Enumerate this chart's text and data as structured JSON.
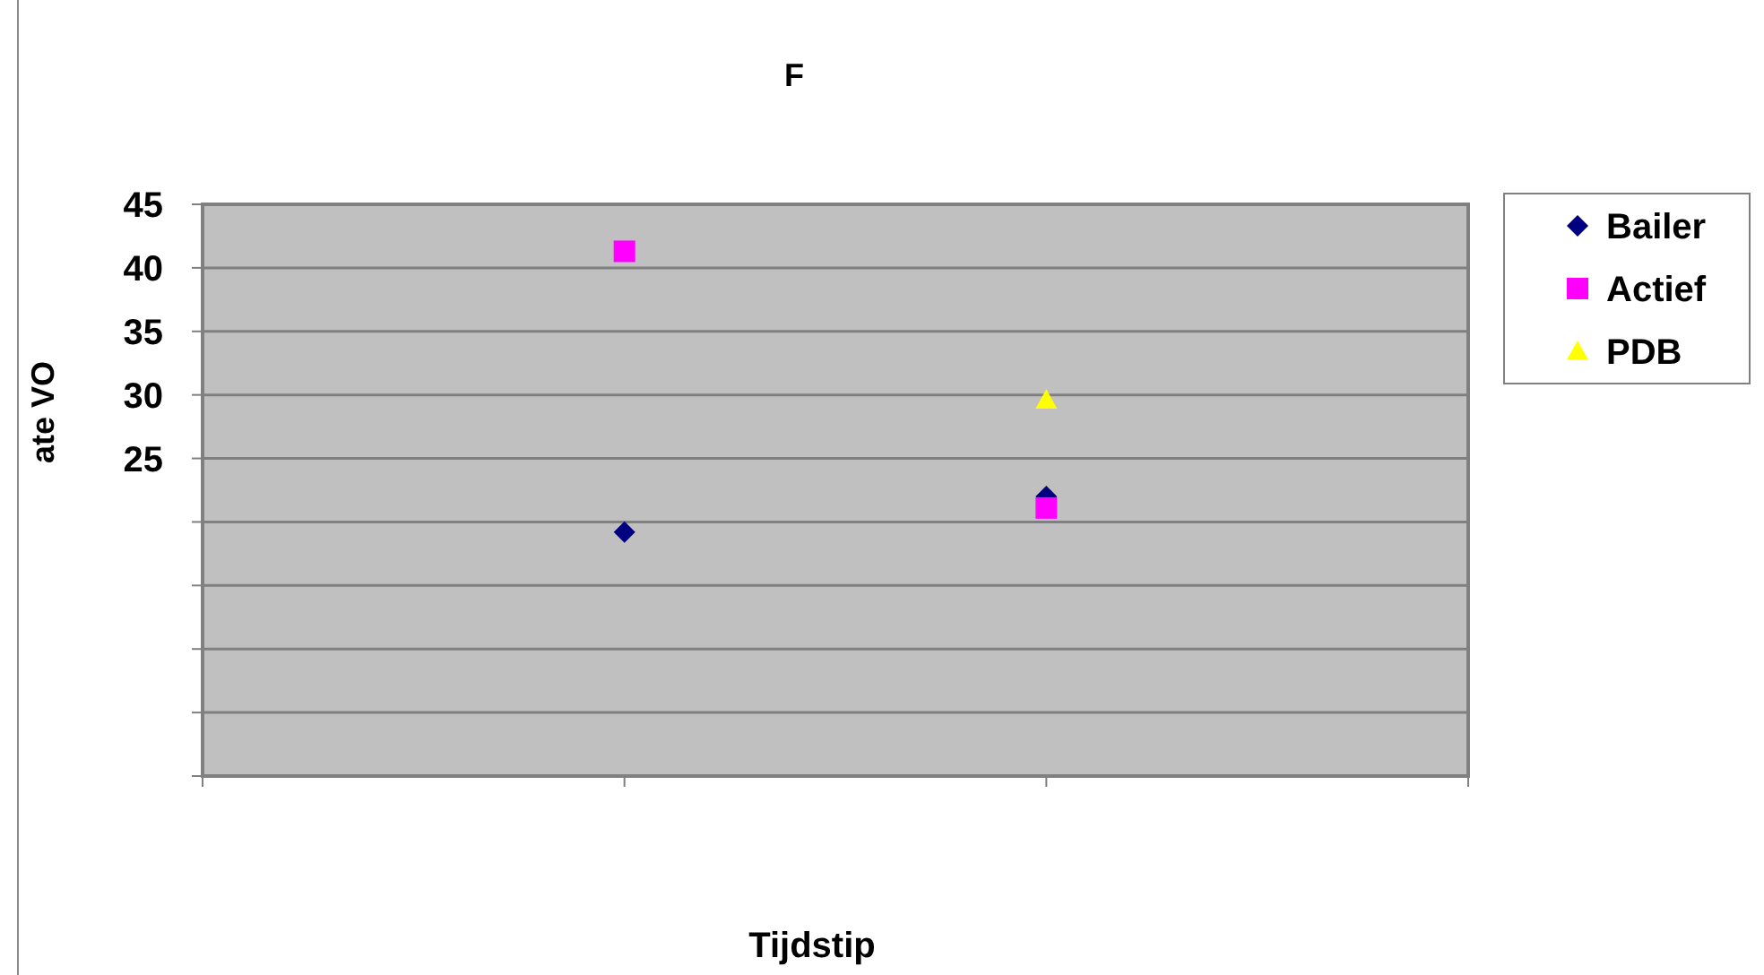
{
  "chart_data": {
    "type": "scatter",
    "title": "F",
    "xlabel": "Tijdstip",
    "ylabel": "ate VO",
    "categories": [
      null,
      null
    ],
    "ylim": [
      0,
      45
    ],
    "yticks": [
      {
        "value": 0,
        "label": null
      },
      {
        "value": 5,
        "label": null
      },
      {
        "value": 10,
        "label": null
      },
      {
        "value": 15,
        "label": null
      },
      {
        "value": 20,
        "label": null
      },
      25,
      30,
      35,
      40,
      45
    ],
    "grid": "y",
    "legend": "top right",
    "series": [
      {
        "name": "Bailer",
        "color": "#000080",
        "marker": "diamond",
        "values": [
          19.2,
          22.0
        ]
      },
      {
        "name": "Actief",
        "color": "#ff00ff",
        "marker": "square",
        "values": [
          41.3,
          21.1
        ]
      },
      {
        "name": "PDB",
        "color": "#ffff00",
        "marker": "triangle",
        "values": [
          null,
          29.6
        ]
      }
    ]
  }
}
